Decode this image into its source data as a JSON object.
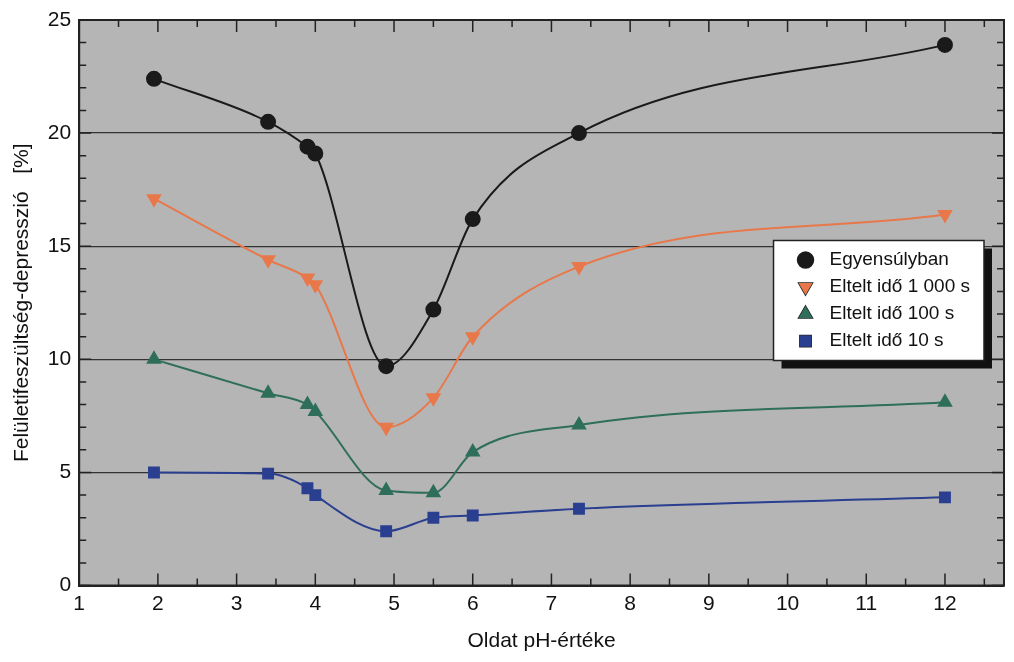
{
  "chart_data": {
    "type": "line",
    "xlabel": "Oldat pH-értéke",
    "ylabel": "Felületifeszültség-depresszió   [%]",
    "xlim": [
      1,
      12.75
    ],
    "ylim": [
      0,
      25
    ],
    "xticks": [
      1,
      {
        "value": 1.5,
        "label": null
      },
      2,
      {
        "value": 2.5,
        "label": null
      },
      3,
      {
        "value": 3.5,
        "label": null
      },
      4,
      {
        "value": 4.5,
        "label": null
      },
      5,
      {
        "value": 5.5,
        "label": null
      },
      6,
      {
        "value": 6.5,
        "label": null
      },
      7,
      {
        "value": 7.5,
        "label": null
      },
      8,
      {
        "value": 8.5,
        "label": null
      },
      9,
      {
        "value": 9.5,
        "label": null
      },
      10,
      {
        "value": 10.5,
        "label": null
      },
      11,
      {
        "value": 11.5,
        "label": null
      },
      12,
      {
        "value": 12.5,
        "label": null
      }
    ],
    "yticks": [
      0,
      {
        "value": 1,
        "label": null
      },
      {
        "value": 2,
        "label": null
      },
      {
        "value": 3,
        "label": null
      },
      {
        "value": 4,
        "label": null
      },
      5,
      {
        "value": 6,
        "label": null
      },
      {
        "value": 7,
        "label": null
      },
      {
        "value": 8,
        "label": null
      },
      {
        "value": 9,
        "label": null
      },
      10,
      {
        "value": 11,
        "label": null
      },
      {
        "value": 12,
        "label": null
      },
      {
        "value": 13,
        "label": null
      },
      {
        "value": 14,
        "label": null
      },
      15,
      {
        "value": 16,
        "label": null
      },
      {
        "value": 17,
        "label": null
      },
      {
        "value": 18,
        "label": null
      },
      {
        "value": 19,
        "label": null
      },
      20,
      {
        "value": 21,
        "label": null
      },
      {
        "value": 22,
        "label": null
      },
      {
        "value": 23,
        "label": null
      },
      {
        "value": 24,
        "label": null
      },
      25
    ],
    "grid": "y",
    "line_style": "solid",
    "legend": "right",
    "x": [
      1.95,
      3.4,
      3.9,
      4.0,
      4.9,
      5.5,
      6.0,
      7.35,
      12
    ],
    "series": [
      {
        "name": "Egyensúlyban",
        "color": "#1a1a1a",
        "marker": "circle",
        "values": [
          22.4,
          20.5,
          19.4,
          19.1,
          9.7,
          12.2,
          16.2,
          20.0,
          23.9
        ]
      },
      {
        "name": "Eltelt idő 1 000 s",
        "color": "#e8784a",
        "marker": "triangle-down",
        "values": [
          17.1,
          14.4,
          13.6,
          13.3,
          7.0,
          8.3,
          11.0,
          14.1,
          16.4
        ]
      },
      {
        "name": "Eltelt idő 100 s",
        "color": "#2e6e5a",
        "marker": "triangle",
        "values": [
          10.0,
          8.5,
          8.0,
          7.7,
          4.2,
          4.1,
          5.9,
          7.1,
          8.1
        ]
      },
      {
        "name": "Eltelt idő 10 s",
        "color": "#2a3f8f",
        "marker": "square",
        "values": [
          5.0,
          4.95,
          4.3,
          4.0,
          2.4,
          3.0,
          3.1,
          3.4,
          3.9
        ]
      }
    ]
  }
}
